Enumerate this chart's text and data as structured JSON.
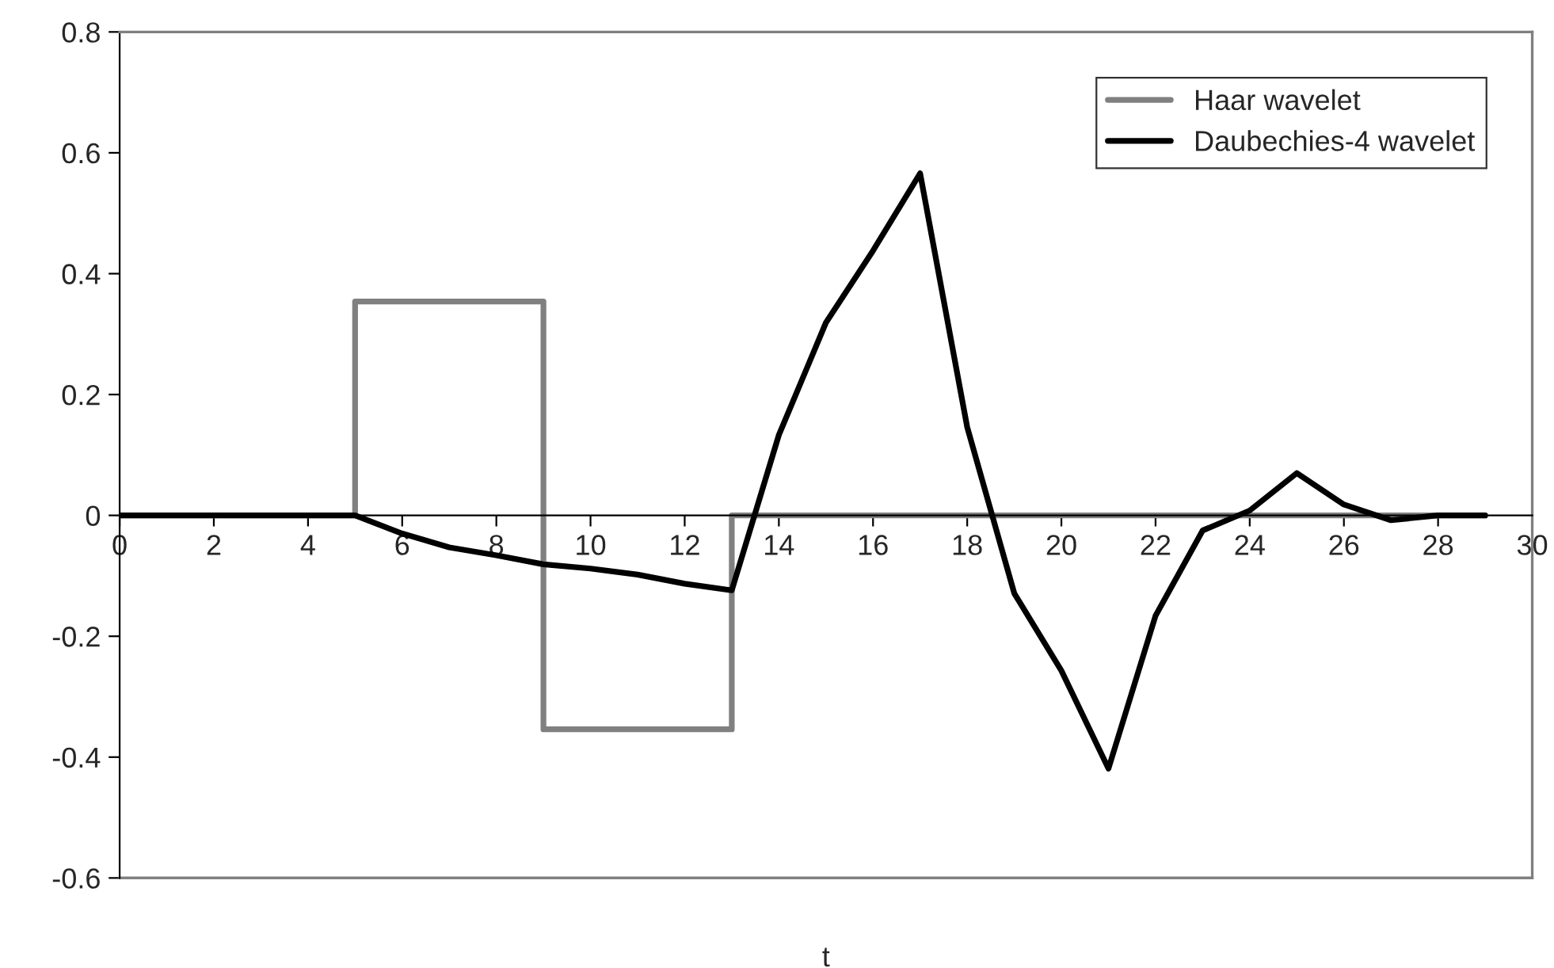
{
  "chart_data": {
    "type": "line",
    "xlabel": "t",
    "series": [
      {
        "name": "Haar wavelet",
        "color": "#808080",
        "x": [
          0,
          5,
          5,
          9,
          9,
          13,
          13,
          29
        ],
        "values": [
          0,
          0,
          0.354,
          0.354,
          -0.354,
          -0.354,
          0,
          0
        ]
      },
      {
        "name": "Daubechies-4 wavelet",
        "color": "#000000",
        "x": [
          0,
          1,
          2,
          3,
          4,
          5,
          6,
          7,
          8,
          9,
          10,
          11,
          12,
          13,
          14,
          15,
          16,
          17,
          18,
          19,
          20,
          21,
          22,
          23,
          24,
          25,
          26,
          27,
          28,
          29
        ],
        "values": [
          0,
          0,
          0,
          0,
          0,
          0,
          -0.03,
          -0.053,
          -0.066,
          -0.081,
          -0.088,
          -0.098,
          -0.113,
          -0.124,
          0.133,
          0.319,
          0.438,
          0.566,
          0.146,
          -0.129,
          -0.257,
          -0.419,
          -0.166,
          -0.025,
          0.008,
          0.07,
          0.018,
          -0.008,
          0,
          0
        ]
      }
    ],
    "xlim": [
      0,
      30
    ],
    "xticks": [
      0,
      2,
      4,
      6,
      8,
      10,
      12,
      14,
      16,
      18,
      20,
      22,
      24,
      26,
      28,
      30
    ],
    "ylim": [
      -0.6,
      0.8
    ],
    "yticks": [
      -0.6,
      -0.4,
      -0.2,
      0,
      0.2,
      0.4,
      0.6,
      0.8
    ],
    "legend": "top right",
    "grid": false,
    "marker": "none",
    "line_style": "solid"
  }
}
